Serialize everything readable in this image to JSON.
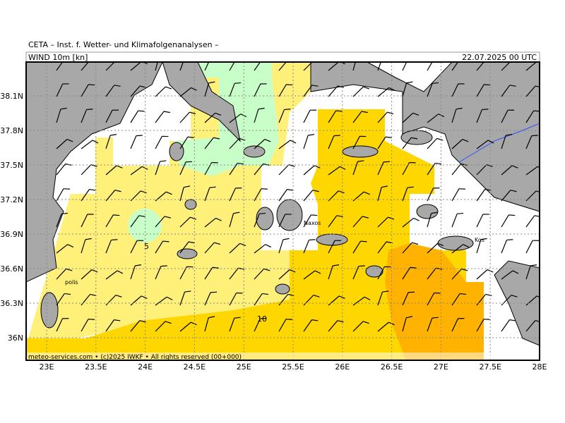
{
  "header": {
    "source": "CETA – Inst. f. Wetter- und Klimafolgenanalysen –",
    "field": "WIND 10m [kn]",
    "datetime": "22.07.2025 00 UTC"
  },
  "axes": {
    "lat_labels": [
      "38.1N",
      "37.8N",
      "37.5N",
      "37.2N",
      "36.9N",
      "36.6N",
      "36.3N",
      "36N"
    ],
    "lon_labels": [
      "23E",
      "23.5E",
      "24E",
      "24.5E",
      "25E",
      "25.5E",
      "26E",
      "26.5E",
      "27E",
      "27.5E",
      "28E"
    ]
  },
  "places": [
    {
      "name": "Naxos"
    },
    {
      "name": "Kos"
    },
    {
      "name": "polis"
    }
  ],
  "contour_labels": [
    "5",
    "10"
  ],
  "footer": "meteo-services.com • (c)2025 IWKF • All rights reserved (00+000)"
}
